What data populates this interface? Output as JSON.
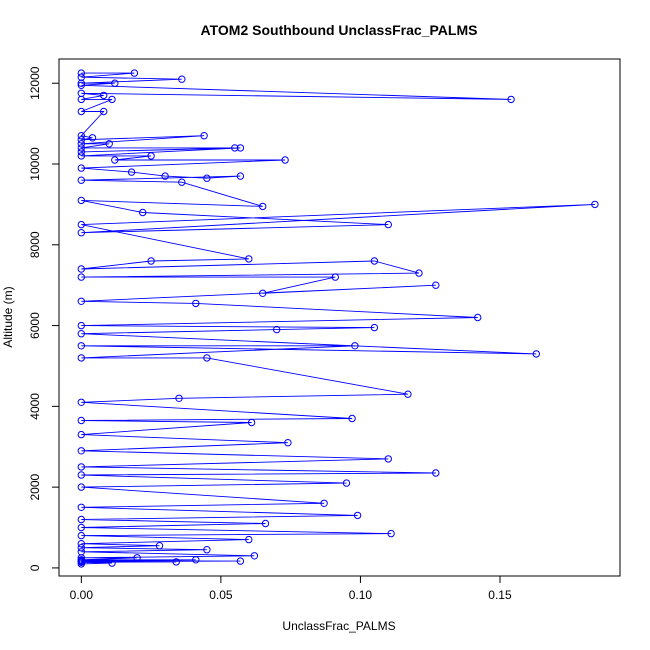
{
  "chart_data": {
    "type": "line",
    "title": "ATOM2 Southbound UnclassFrac_PALMS",
    "xlabel": "UnclassFrac_PALMS",
    "ylabel": "Altitude (m)",
    "xlim": [
      -0.008,
      0.193
    ],
    "ylim": [
      -200,
      12600
    ],
    "x_ticks": [
      0.0,
      0.05,
      0.1,
      0.15
    ],
    "x_tick_labels": [
      "0.00",
      "0.05",
      "0.10",
      "0.15"
    ],
    "y_ticks": [
      0,
      2000,
      4000,
      6000,
      8000,
      10000,
      12000
    ],
    "y_tick_labels": [
      "0",
      "2000",
      "4000",
      "6000",
      "8000",
      "10000",
      "12000"
    ],
    "grid": false,
    "markers": "open-circle",
    "series_color": "#0000ff",
    "series": [
      {
        "x": [
          0.0,
          0.019,
          0.0,
          0.036,
          0.0,
          0.012,
          0.0,
          0.154,
          0.0,
          0.008,
          0.0,
          0.011,
          0.0,
          0.008,
          0.0,
          0.004,
          0.0,
          0.044,
          0.0,
          0.01,
          0.0,
          0.055,
          0.0,
          0.057,
          0.0,
          0.025,
          0.012,
          0.073,
          0.0,
          0.018,
          0.03,
          0.045,
          0.057,
          0.0,
          0.036,
          0.065,
          0.0,
          0.022,
          0.11,
          0.0,
          0.184,
          0.0,
          0.06,
          0.025,
          0.0,
          0.105,
          0.121,
          0.0,
          0.091,
          0.065,
          0.127,
          0.0,
          0.041,
          0.142,
          0.0,
          0.105,
          0.07,
          0.0,
          0.163,
          0.0,
          0.098,
          0.0,
          0.045,
          0.117,
          0.035,
          0.0,
          0.097,
          0.0,
          0.061,
          0.0,
          0.074,
          0.0,
          0.11,
          0.0,
          0.127,
          0.0,
          0.095,
          0.0,
          0.087,
          0.0,
          0.099,
          0.0,
          0.066,
          0.0,
          0.111,
          0.0,
          0.06,
          0.0,
          0.028,
          0.0,
          0.045,
          0.0,
          0.062,
          0.0,
          0.02,
          0.0,
          0.041,
          0.0,
          0.057,
          0.0,
          0.034,
          0.0,
          0.011,
          0.0
        ],
        "y": [
          12250,
          12250,
          12150,
          12100,
          12000,
          12000,
          11950,
          11600,
          11750,
          11700,
          11600,
          11600,
          11300,
          11300,
          10700,
          10650,
          10600,
          10700,
          10500,
          10500,
          10400,
          10400,
          10300,
          10400,
          10200,
          10200,
          10100,
          10100,
          9900,
          9800,
          9700,
          9650,
          9700,
          9600,
          9550,
          8950,
          9100,
          8800,
          8500,
          8300,
          9000,
          8500,
          7650,
          7600,
          7400,
          7600,
          7300,
          7200,
          7200,
          6800,
          7000,
          6600,
          6550,
          6200,
          6000,
          5950,
          5900,
          5800,
          5300,
          5500,
          5500,
          5200,
          5200,
          4300,
          4200,
          4100,
          3700,
          3650,
          3600,
          3300,
          3100,
          2900,
          2700,
          2500,
          2350,
          2300,
          2100,
          2000,
          1600,
          1500,
          1300,
          1200,
          1100,
          1000,
          850,
          800,
          700,
          600,
          550,
          500,
          450,
          400,
          300,
          250,
          250,
          200,
          200,
          180,
          170,
          160,
          150,
          140,
          120,
          100
        ]
      }
    ]
  }
}
